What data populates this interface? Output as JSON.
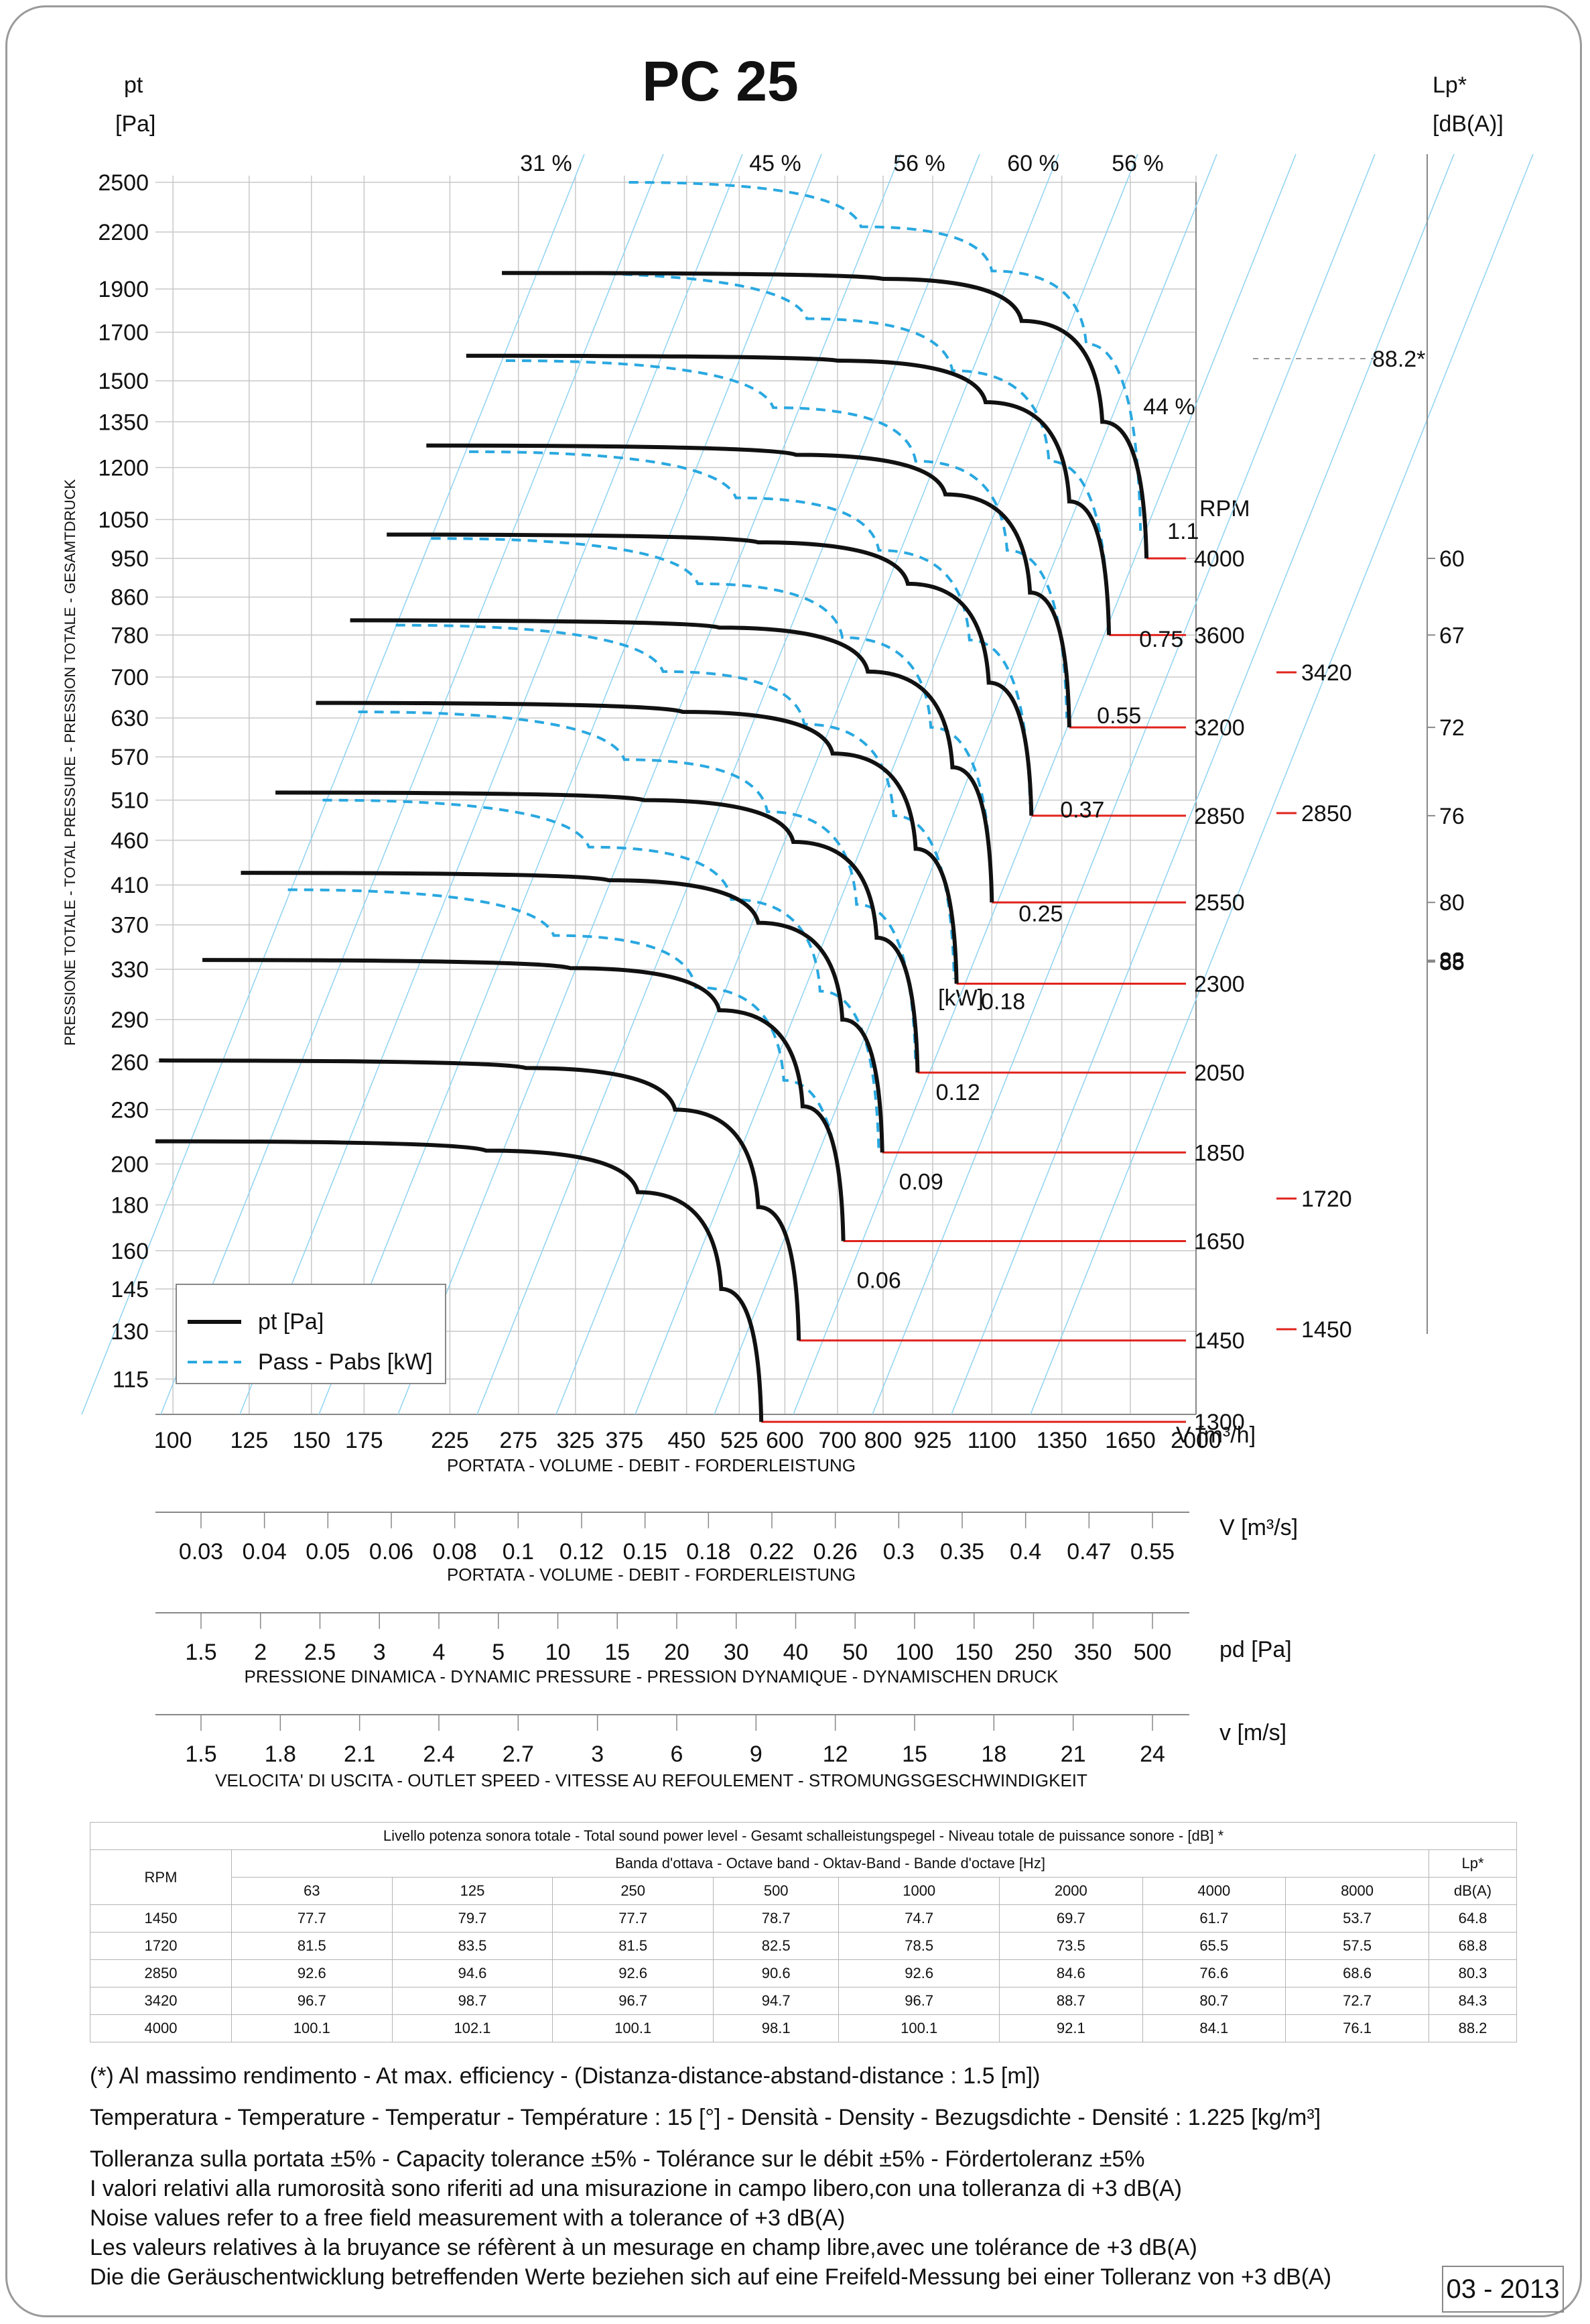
{
  "title": "PC 25",
  "axes": {
    "y_left_label": [
      "pt",
      "[Pa]"
    ],
    "y_left_vertical": "PRESSIONE TOTALE - TOTAL PRESSURE - PRESSION TOTALE - GESAMTDRUCK",
    "y_right_label": [
      "Lp*",
      "[dB(A)]"
    ],
    "x_label": "PORTATA - VOLUME - DEBIT - FORDERLEISTUNG",
    "x_unit": "V [m³/h]",
    "x2_unit": "V  [m³/s]",
    "x2_label": "PORTATA - VOLUME - DEBIT - FORDERLEISTUNG",
    "x3_unit": "pd  [Pa]",
    "x3_label": "PRESSIONE DINAMICA - DYNAMIC PRESSURE - PRESSION DYNAMIQUE - DYNAMISCHEN DRUCK",
    "x4_unit": "v  [m/s]",
    "x4_label": "VELOCITA' DI USCITA - OUTLET SPEED - VITESSE AU REFOULEMENT - STROMUNGSGESCHWINDIGKEIT",
    "rpm_label": "RPM",
    "power_unit": "[kW]"
  },
  "legend": [
    {
      "label": "pt [Pa]",
      "style": "solid",
      "color": "#111111"
    },
    {
      "label": "Pass - Pabs [kW]",
      "style": "dashed",
      "color": "#29a8e0"
    }
  ],
  "chart_data": {
    "type": "line",
    "x_scale": "log",
    "y_scale": "log",
    "xlim": [
      95,
      2000
    ],
    "ylim": [
      105,
      2500
    ],
    "x_ticks": [
      100,
      125,
      150,
      175,
      225,
      275,
      325,
      375,
      450,
      525,
      600,
      700,
      800,
      925,
      1100,
      1350,
      1650,
      2000
    ],
    "y_ticks": [
      115,
      130,
      145,
      160,
      180,
      200,
      230,
      260,
      290,
      330,
      370,
      410,
      460,
      510,
      570,
      630,
      700,
      780,
      860,
      950,
      1050,
      1200,
      1350,
      1500,
      1700,
      1900,
      2200,
      2500
    ],
    "efficiency_labels": [
      "31 %",
      "45 %",
      "56 %",
      "60 %",
      "56 %",
      "44 %"
    ],
    "pt_series": [
      {
        "rpm": "4000",
        "x": [
          262,
          800,
          1200,
          1520,
          1730
        ],
        "y": [
          1980,
          1950,
          1750,
          1350,
          950
        ]
      },
      {
        "rpm": "3600",
        "x": [
          236,
          700,
          1080,
          1380,
          1550
        ],
        "y": [
          1600,
          1580,
          1420,
          1100,
          780
        ]
      },
      {
        "rpm": "3200",
        "x": [
          210,
          620,
          960,
          1230,
          1380
        ],
        "y": [
          1270,
          1240,
          1120,
          870,
          615
        ]
      },
      {
        "rpm": "2850",
        "x": [
          187,
          555,
          860,
          1090,
          1235
        ],
        "y": [
          1010,
          990,
          890,
          690,
          490
        ]
      },
      {
        "rpm": "2550",
        "x": [
          168,
          495,
          765,
          980,
          1100
        ],
        "y": [
          810,
          795,
          710,
          555,
          392
        ]
      },
      {
        "rpm": "2300",
        "x": [
          152,
          445,
          690,
          880,
          992
        ],
        "y": [
          655,
          640,
          575,
          450,
          318
        ]
      },
      {
        "rpm": "2050",
        "x": [
          135,
          397,
          615,
          785,
          885
        ],
        "y": [
          520,
          510,
          458,
          358,
          253
        ]
      },
      {
        "rpm": "1850",
        "x": [
          122,
          358,
          555,
          710,
          798
        ],
        "y": [
          423,
          415,
          372,
          290,
          206
        ]
      },
      {
        "rpm": "1650",
        "x": [
          109,
          320,
          495,
          632,
          712
        ],
        "y": [
          338,
          331,
          297,
          232,
          164
        ]
      },
      {
        "rpm": "1450",
        "x": [
          96,
          281,
          435,
          555,
          625
        ],
        "y": [
          261,
          256,
          230,
          179,
          127
        ]
      },
      {
        "rpm": "1300",
        "x": [
          95,
          250,
          390,
          498,
          560
        ],
        "y": [
          212,
          207,
          186,
          145,
          103
        ]
      }
    ],
    "power_series": [
      {
        "label": "1.1",
        "x": [
          380,
          750,
          1100,
          1450,
          1700
        ],
        "y": [
          2500,
          2230,
          1990,
          1650,
          1020
        ]
      },
      {
        "label": "0.75",
        "x": [
          295,
          640,
          980,
          1300,
          1550
        ],
        "y": [
          1980,
          1760,
          1540,
          1220,
          790
        ]
      },
      {
        "label": "0.55",
        "x": [
          265,
          580,
          880,
          1150,
          1370
        ],
        "y": [
          1580,
          1400,
          1220,
          970,
          630
        ]
      },
      {
        "label": "0.37",
        "x": [
          238,
          520,
          790,
          1030,
          1230
        ],
        "y": [
          1250,
          1110,
          970,
          770,
          505
        ]
      },
      {
        "label": "0.25",
        "x": [
          213,
          465,
          710,
          920,
          1100
        ],
        "y": [
          1000,
          890,
          775,
          615,
          400
        ]
      },
      {
        "label": "0.18",
        "x": [
          192,
          420,
          635,
          825,
          985
        ],
        "y": [
          800,
          710,
          620,
          490,
          322
        ]
      },
      {
        "label": "0.12",
        "x": [
          172,
          375,
          570,
          740,
          880
        ],
        "y": [
          640,
          566,
          495,
          390,
          258
        ]
      },
      {
        "label": "0.09",
        "x": [
          155,
          338,
          513,
          665,
          790
        ],
        "y": [
          510,
          452,
          395,
          312,
          206
        ]
      },
      {
        "label": "0.06",
        "x": [
          140,
          305,
          462,
          598,
          712
        ],
        "y": [
          405,
          360,
          315,
          248,
          164
        ]
      }
    ],
    "right_markers": [
      "3420",
      "2850",
      "1720",
      "1450"
    ],
    "lp_ticks": [
      "88",
      "85",
      "83",
      "80",
      "76",
      "72",
      "67",
      "60"
    ],
    "lp_values": {
      "4000": 88,
      "3600": 85,
      "3200": 83,
      "2850": 80,
      "2550": 76,
      "2300": 72,
      "2050": 67,
      "1850": 60
    },
    "lp_marker": "88.2*",
    "rpm_labels": [
      "4000",
      "3600",
      "3200",
      "2850",
      "2550",
      "2300",
      "2050",
      "1850",
      "1650",
      "1450",
      "1300"
    ],
    "v_ms_ticks": [
      "0.03",
      "0.04",
      "0.05",
      "0.06",
      "0.08",
      "0.1",
      "0.12",
      "0.15",
      "0.18",
      "0.22",
      "0.26",
      "0.3",
      "0.35",
      "0.4",
      "0.47",
      "0.55"
    ],
    "pd_ticks": [
      "1.5",
      "2",
      "2.5",
      "3",
      "4",
      "5",
      "10",
      "15",
      "20",
      "30",
      "40",
      "50",
      "100",
      "150",
      "250",
      "350",
      "500"
    ],
    "speed_ticks": [
      "1.5",
      "1.8",
      "2.1",
      "2.4",
      "2.7",
      "3",
      "6",
      "9",
      "12",
      "15",
      "18",
      "21",
      "24"
    ]
  },
  "sound_table": {
    "title": "Livello potenza sonora totale - Total sound power level - Gesamt schalleistungspegel - Niveau totale de puissance sonore - [dB]   *",
    "band_title": "Banda d'ottava - Octave band - Oktav-Band - Bande d'octave [Hz]",
    "rpm_header": "RPM",
    "lp_header": "Lp*",
    "lp_unit": "dB(A)",
    "bands": [
      "63",
      "125",
      "250",
      "500",
      "1000",
      "2000",
      "4000",
      "8000"
    ],
    "rows": [
      {
        "rpm": "1450",
        "values": [
          "77.7",
          "79.7",
          "77.7",
          "78.7",
          "74.7",
          "69.7",
          "61.7",
          "53.7"
        ],
        "lp": "64.8"
      },
      {
        "rpm": "1720",
        "values": [
          "81.5",
          "83.5",
          "81.5",
          "82.5",
          "78.5",
          "73.5",
          "65.5",
          "57.5"
        ],
        "lp": "68.8"
      },
      {
        "rpm": "2850",
        "values": [
          "92.6",
          "94.6",
          "92.6",
          "90.6",
          "92.6",
          "84.6",
          "76.6",
          "68.6"
        ],
        "lp": "80.3"
      },
      {
        "rpm": "3420",
        "values": [
          "96.7",
          "98.7",
          "96.7",
          "94.7",
          "96.7",
          "88.7",
          "80.7",
          "72.7"
        ],
        "lp": "84.3"
      },
      {
        "rpm": "4000",
        "values": [
          "100.1",
          "102.1",
          "100.1",
          "98.1",
          "100.1",
          "92.1",
          "84.1",
          "76.1"
        ],
        "lp": "88.2"
      }
    ]
  },
  "notes": [
    "(*) Al massimo rendimento - At max. efficiency - (Distanza-distance-abstand-distance : 1.5 [m])",
    "Temperatura - Temperature - Temperatur - Température : 15 [°]  -  Densità - Density - Bezugsdichte - Densité : 1.225 [kg/m³]",
    "Tolleranza sulla portata  ±5% - Capacity tolerance ±5% - Tolérance sur le débit ±5% - Fördertoleranz ±5%",
    "I valori relativi alla rumorosità sono riferiti ad una misurazione in campo libero,con una tolleranza di +3 dB(A)",
    "Noise values refer to a free field measurement with a tolerance of +3 dB(A)",
    "Les valeurs relatives à la bruyance se réfèrent à un mesurage en champ libre,avec une tolérance de +3 dB(A)",
    "Die die Geräuschentwicklung betreffenden Werte beziehen sich auf eine Freifeld-Messung bei einer Tolleranz von +3 dB(A)"
  ],
  "stamp": "03 - 2013",
  "colors": {
    "curve": "#111111",
    "power": "#29a8e0",
    "grid": "#c8c8c8",
    "efficiency": "#8fd3f2",
    "rpm_lines": "#e0231c"
  }
}
